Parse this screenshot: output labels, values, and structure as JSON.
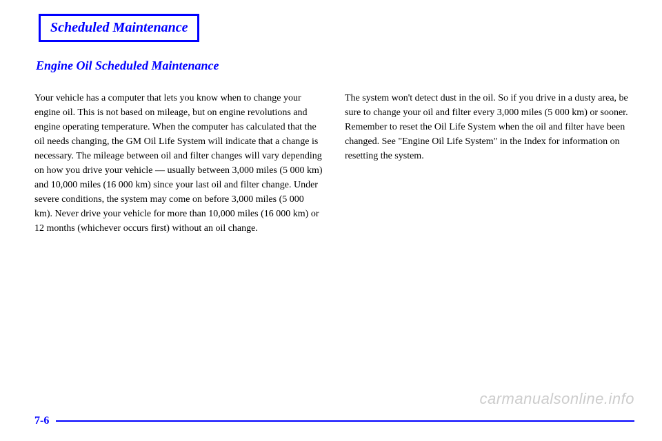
{
  "colors": {
    "accent": "#0000ff",
    "text": "#000000",
    "watermark": "#cccccc",
    "bg": "#ffffff"
  },
  "header": {
    "box_title": "Scheduled Maintenance"
  },
  "section": {
    "heading": "Engine Oil Scheduled Maintenance",
    "left_para": "Your vehicle has a computer that lets you know when to change your engine oil. This is not based on mileage, but on engine revolutions and engine operating temperature. When the computer has calculated that the oil needs changing, the GM Oil Life System will indicate that a change is necessary. The mileage between oil and filter changes will vary depending on how you drive your vehicle — usually between 3,000 miles (5 000 km) and 10,000 miles (16 000 km) since your last oil and filter change. Under severe conditions, the system may come on before 3,000 miles (5 000 km). Never drive your vehicle for more than 10,000 miles (16 000 km) or 12 months (whichever occurs first) without an oil change.",
    "right_para": "The system won't detect dust in the oil. So if you drive in a dusty area, be sure to change your oil and filter every 3,000 miles (5 000 km) or sooner. Remember to reset the Oil Life System when the oil and filter have been changed. See \"Engine Oil Life System\" in the Index for information on resetting the system."
  },
  "footer": {
    "page_number": "7-6"
  },
  "watermark": "carmanualsonline.info"
}
